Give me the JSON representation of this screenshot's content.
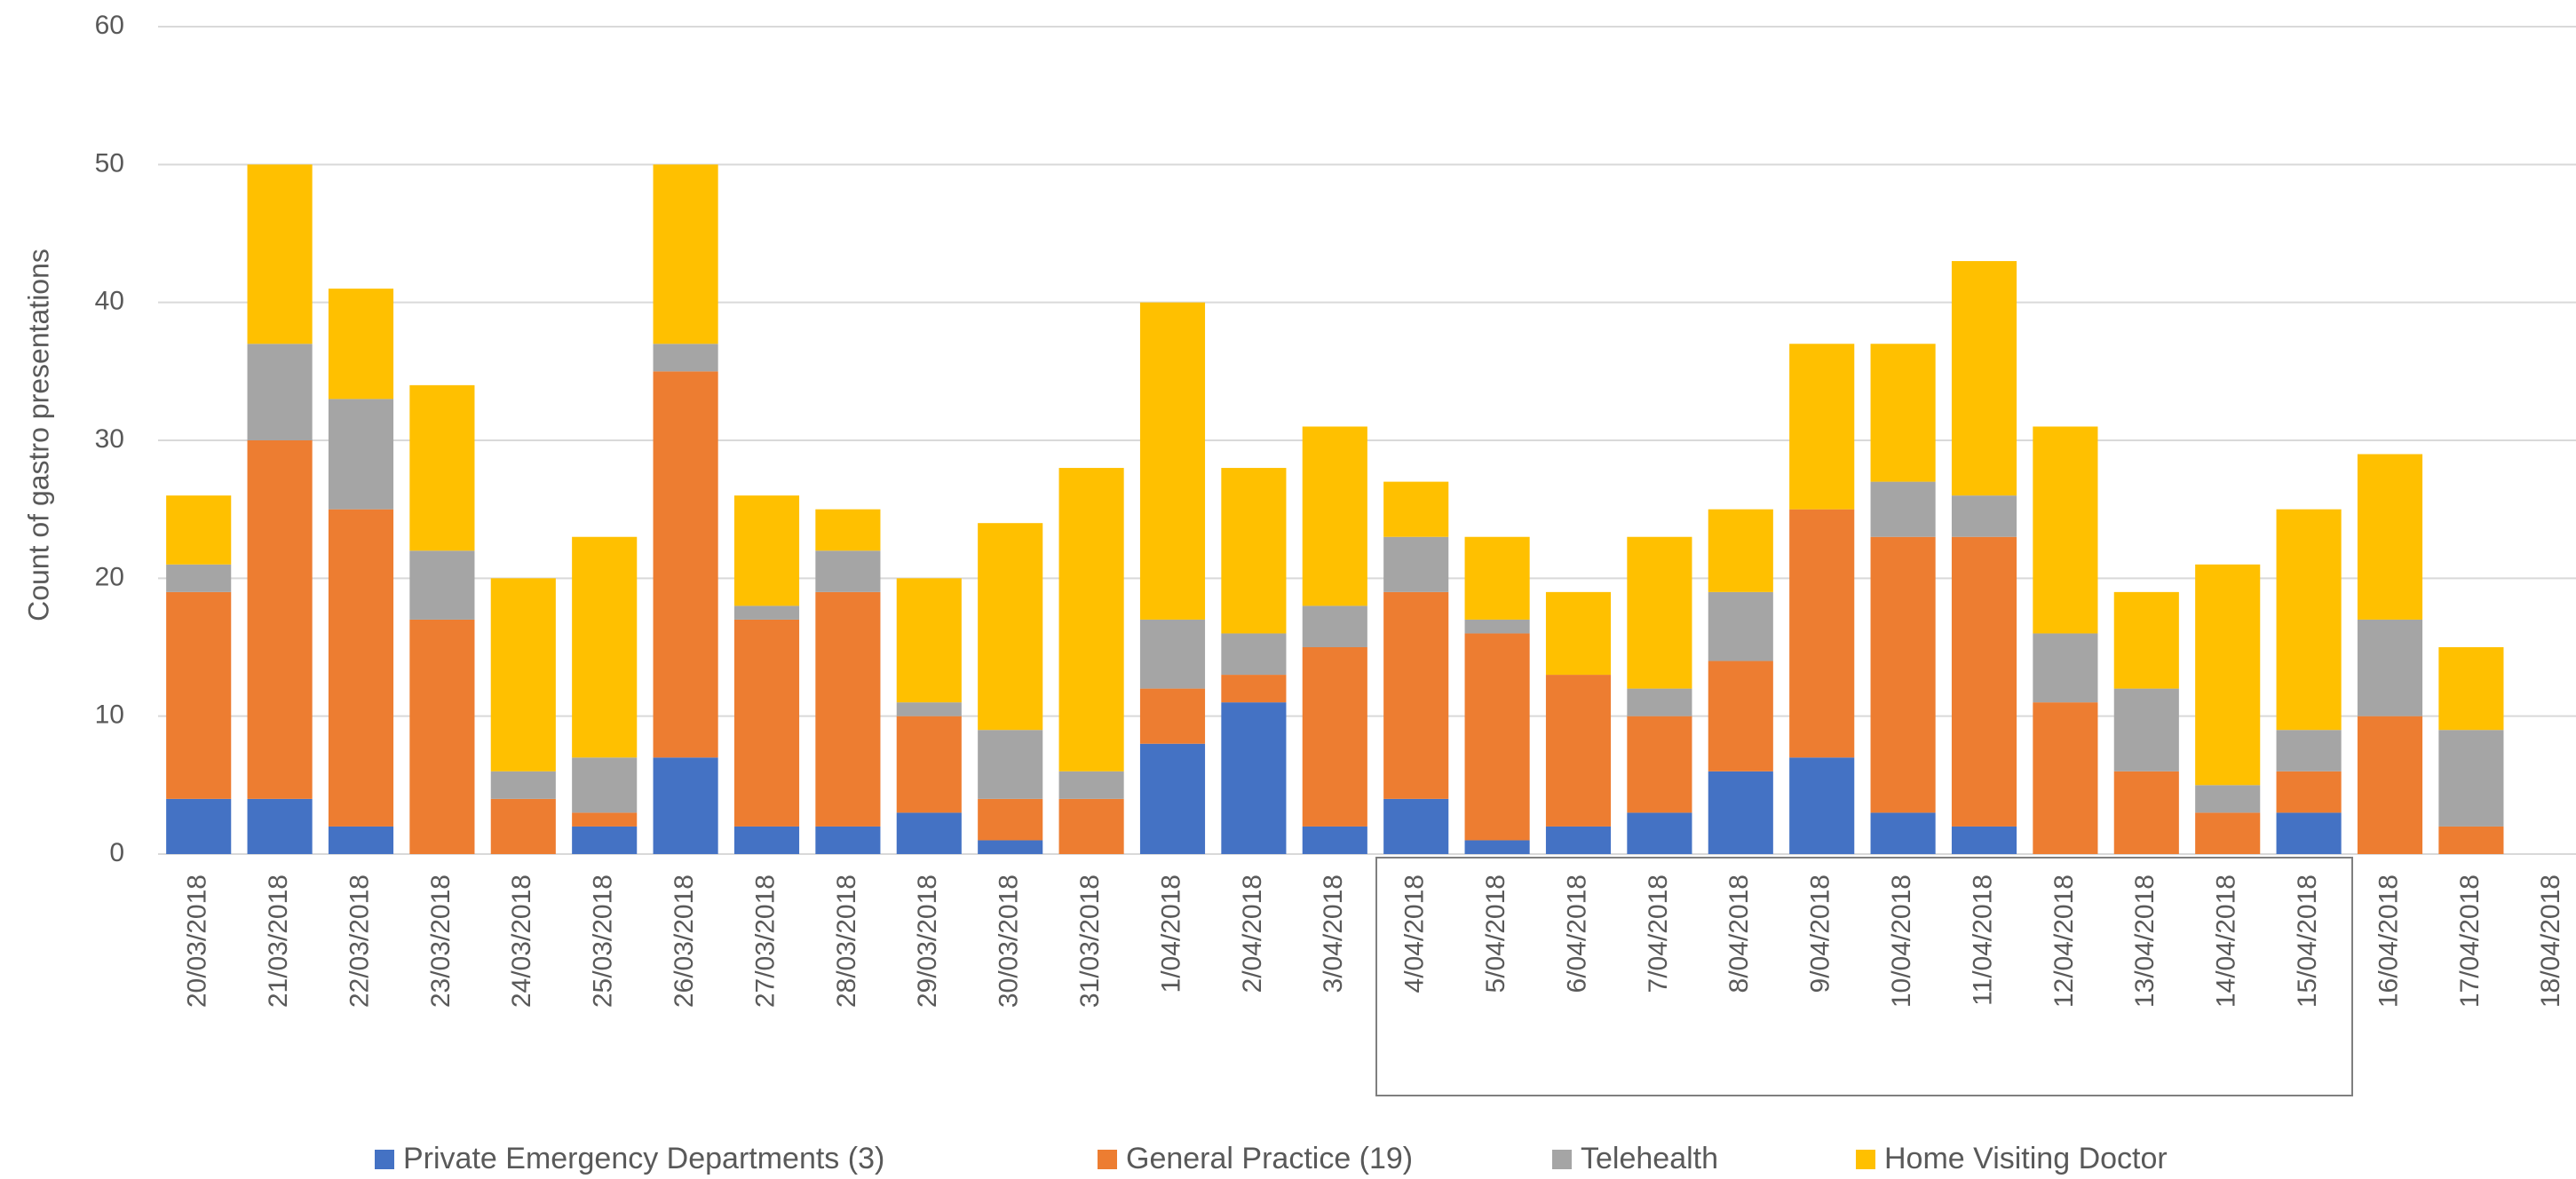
{
  "chart_data": {
    "type": "stacked_bar",
    "y_label": "Count of gastro presentations",
    "categories": [
      "20/03/2018",
      "21/03/2018",
      "22/03/2018",
      "23/03/2018",
      "24/03/2018",
      "25/03/2018",
      "26/03/2018",
      "27/03/2018",
      "28/03/2018",
      "29/03/2018",
      "30/03/2018",
      "31/03/2018",
      "1/04/2018",
      "2/04/2018",
      "3/04/2018",
      "4/04/2018",
      "5/04/2018",
      "6/04/2018",
      "7/04/2018",
      "8/04/2018",
      "9/04/2018",
      "10/04/2018",
      "11/04/2018",
      "12/04/2018",
      "13/04/2018",
      "14/04/2018",
      "15/04/2018",
      "16/04/2018",
      "17/04/2018",
      "18/04/2018"
    ],
    "series": [
      {
        "name": "Private Emergency Departments (3)",
        "color": "#4472c4",
        "values": [
          4,
          4,
          2,
          0,
          0,
          2,
          7,
          2,
          2,
          3,
          1,
          0,
          8,
          11,
          2,
          4,
          1,
          2,
          3,
          6,
          7,
          3,
          2,
          0,
          0,
          0,
          3,
          0,
          0,
          null
        ]
      },
      {
        "name": "General Practice (19)",
        "color": "#ed7d31",
        "values": [
          15,
          26,
          23,
          17,
          4,
          1,
          28,
          15,
          17,
          7,
          3,
          4,
          4,
          2,
          13,
          15,
          15,
          11,
          7,
          8,
          18,
          20,
          21,
          11,
          6,
          3,
          3,
          10,
          2,
          null
        ]
      },
      {
        "name": "Telehealth",
        "color": "#a5a5a5",
        "values": [
          2,
          7,
          8,
          5,
          2,
          4,
          2,
          1,
          3,
          1,
          5,
          2,
          5,
          3,
          3,
          4,
          1,
          0,
          2,
          5,
          0,
          4,
          3,
          5,
          6,
          2,
          3,
          7,
          7,
          null
        ]
      },
      {
        "name": "Home Visiting Doctor",
        "color": "#ffc000",
        "values": [
          5,
          13,
          8,
          12,
          14,
          16,
          13,
          8,
          3,
          9,
          15,
          22,
          23,
          12,
          13,
          4,
          6,
          6,
          11,
          6,
          12,
          10,
          17,
          15,
          7,
          16,
          16,
          12,
          6,
          null
        ]
      }
    ],
    "ylim": [
      0,
      60
    ],
    "yticks": [
      0,
      10,
      20,
      30,
      40,
      50,
      60
    ],
    "grid": true,
    "legend": "bottom"
  }
}
